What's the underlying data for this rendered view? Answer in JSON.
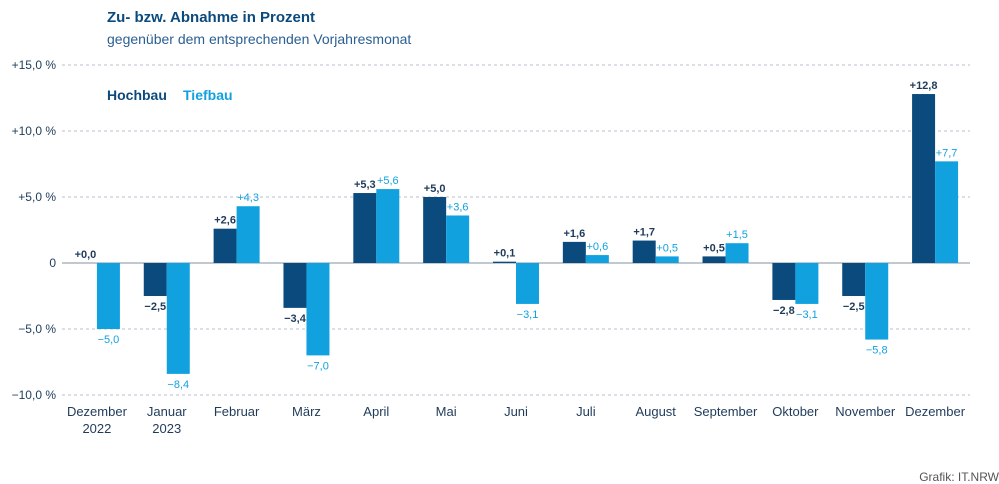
{
  "title": "Zu- bzw. Abnahme in Prozent",
  "subtitle": "gegenüber dem entsprechenden Vorjahresmonat",
  "credit": "Grafik: IT.NRW",
  "chart_data": {
    "type": "bar",
    "categories": [
      [
        "Dezember",
        "2022"
      ],
      [
        "Januar",
        "2023"
      ],
      [
        "Februar"
      ],
      [
        "März"
      ],
      [
        "April"
      ],
      [
        "Mai"
      ],
      [
        "Juni"
      ],
      [
        "Juli"
      ],
      [
        "August"
      ],
      [
        "September"
      ],
      [
        "Oktober"
      ],
      [
        "November"
      ],
      [
        "Dezember"
      ]
    ],
    "series": [
      {
        "name": "Hochbau",
        "color": "#0b4a7d",
        "values": [
          0.0,
          -2.5,
          2.6,
          -3.4,
          5.3,
          5.0,
          0.1,
          1.6,
          1.7,
          0.5,
          -2.8,
          -2.5,
          12.8
        ],
        "labels": [
          "+0,0",
          "−2,5",
          "+2,6",
          "−3,4",
          "+5,3",
          "+5,0",
          "+0,1",
          "+1,6",
          "+1,7",
          "+0,5",
          "−2,8",
          "−2,5",
          "+12,8"
        ]
      },
      {
        "name": "Tiefbau",
        "color": "#12a1df",
        "values": [
          -5.0,
          -8.4,
          4.3,
          -7.0,
          5.6,
          3.6,
          -3.1,
          0.6,
          0.5,
          1.5,
          -3.1,
          -5.8,
          7.7
        ],
        "labels": [
          "−5,0",
          "−8,4",
          "+4,3",
          "−7,0",
          "+5,6",
          "+3,6",
          "−3,1",
          "+0,6",
          "+0,5",
          "+1,5",
          "−3,1",
          "−5,8",
          "+7,7"
        ]
      }
    ],
    "yticks": [
      {
        "value": 15,
        "label": "+15,0 %"
      },
      {
        "value": 10,
        "label": "+10,0 %"
      },
      {
        "value": 5,
        "label": "+5,0 %"
      },
      {
        "value": 0,
        "label": "0"
      },
      {
        "value": -5,
        "label": "−5,0 %"
      },
      {
        "value": -10,
        "label": "−10,0 %"
      }
    ],
    "ylim": [
      -10,
      15
    ],
    "grid": true,
    "legend_position": "top-left"
  }
}
